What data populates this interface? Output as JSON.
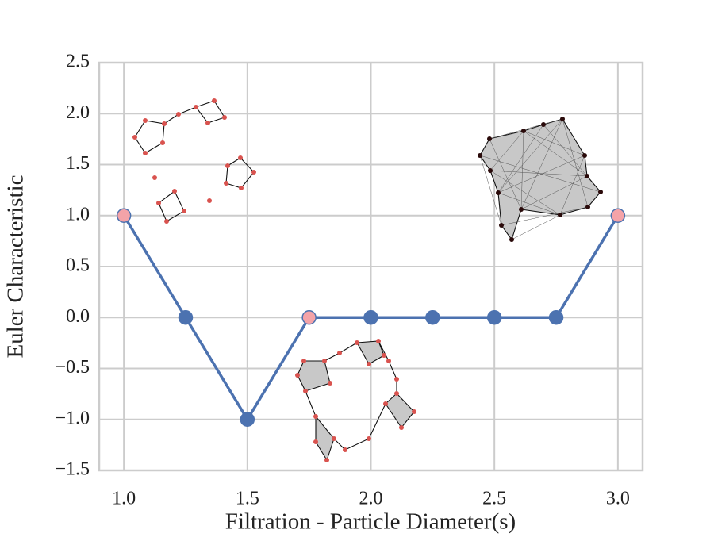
{
  "chart_data": {
    "type": "line",
    "x": [
      1.0,
      1.25,
      1.5,
      1.75,
      2.0,
      2.25,
      2.5,
      2.75,
      3.0
    ],
    "series": [
      {
        "color": "#4c72b0",
        "values": [
          1,
          0,
          -1,
          0,
          0,
          0,
          0,
          0,
          1
        ],
        "marker_colors": [
          "#f4a3a8",
          "#4c72b0",
          "#4c72b0",
          "#f4a3a8",
          "#4c72b0",
          "#4c72b0",
          "#4c72b0",
          "#4c72b0",
          "#f4a3a8"
        ]
      }
    ],
    "x_label": "Filtration - Particle Diameter(s)",
    "y_label": "Euler Characteristic",
    "xlim": [
      0.9,
      3.1
    ],
    "ylim": [
      -1.5,
      2.5
    ],
    "xticks": [
      {
        "value": 1.0,
        "label": "1.0"
      },
      {
        "value": 1.5,
        "label": "1.5"
      },
      {
        "value": 2.0,
        "label": "2.0"
      },
      {
        "value": 2.5,
        "label": "2.5"
      },
      {
        "value": 3.0,
        "label": "3.0"
      }
    ],
    "yticks": [
      {
        "value": -1.5,
        "label": "−1.5"
      },
      {
        "value": -1.0,
        "label": "−1.0"
      },
      {
        "value": -0.5,
        "label": "−0.5"
      },
      {
        "value": 0.0,
        "label": "0.0"
      },
      {
        "value": 0.5,
        "label": "0.5"
      },
      {
        "value": 1.0,
        "label": "1.0"
      },
      {
        "value": 1.5,
        "label": "1.5"
      },
      {
        "value": 2.0,
        "label": "2.0"
      },
      {
        "value": 2.5,
        "label": "2.5"
      }
    ],
    "grid": true
  }
}
